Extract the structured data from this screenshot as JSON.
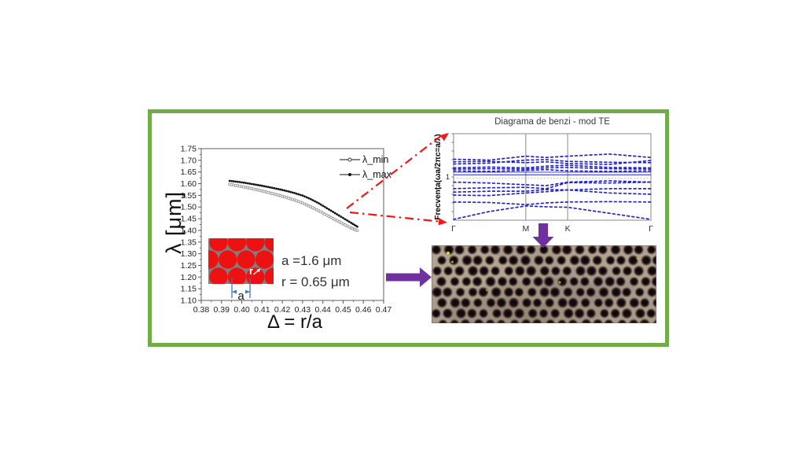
{
  "figure": {
    "border_color": "#70AD47",
    "background": "#ffffff"
  },
  "annotations": {
    "params_line1": "a =1.6 μm",
    "params_line2": "r = 0.65 μm"
  },
  "inset": {
    "a_label": "a",
    "r_label": "r",
    "circle_color": "#ee1111",
    "bg_color": "#7f7f7f",
    "dim_color": "#4472c4"
  },
  "micro": {
    "bg_color": "#a99b8a",
    "hole_color": "#140e10",
    "speck_color": "#cddf4b"
  },
  "arrows": {
    "purple": "#7030A0",
    "red": "#f21818"
  },
  "chart_data": [
    {
      "type": "line",
      "title": "",
      "xlabel": "Δ = r/a",
      "ylabel": "λ [μm]",
      "xlim": [
        0.38,
        0.47
      ],
      "ylim": [
        1.1,
        1.75
      ],
      "x_ticks": [
        0.38,
        0.39,
        0.4,
        0.41,
        0.42,
        0.43,
        0.44,
        0.45,
        0.46,
        0.47
      ],
      "y_ticks": [
        1.1,
        1.15,
        1.2,
        1.25,
        1.3,
        1.35,
        1.4,
        1.45,
        1.5,
        1.55,
        1.6,
        1.65,
        1.7,
        1.75
      ],
      "grid": false,
      "legend_position": "inside-top-right",
      "series": [
        {
          "name": "λ_min",
          "marker": "open",
          "color": "#8f8f8f",
          "x": [
            0.394,
            0.398,
            0.402,
            0.406,
            0.41,
            0.414,
            0.418,
            0.422,
            0.426,
            0.43,
            0.434,
            0.438,
            0.442,
            0.446,
            0.45,
            0.454,
            0.457
          ],
          "y": [
            1.597,
            1.591,
            1.584,
            1.577,
            1.569,
            1.56,
            1.551,
            1.541,
            1.53,
            1.517,
            1.501,
            1.484,
            1.465,
            1.446,
            1.428,
            1.41,
            1.399
          ]
        },
        {
          "name": "λ_max",
          "marker": "filled",
          "color": "#1a1a1a",
          "x": [
            0.394,
            0.398,
            0.402,
            0.406,
            0.41,
            0.414,
            0.418,
            0.422,
            0.426,
            0.43,
            0.434,
            0.438,
            0.442,
            0.446,
            0.45,
            0.454,
            0.457
          ],
          "y": [
            1.612,
            1.608,
            1.603,
            1.597,
            1.591,
            1.584,
            1.577,
            1.569,
            1.56,
            1.549,
            1.534,
            1.516,
            1.495,
            1.474,
            1.453,
            1.432,
            1.416
          ]
        }
      ]
    },
    {
      "type": "scatter",
      "title": "Diagrama de benzi - mod TE",
      "ylabel": "Frecvența(ωa/2πc=a/λ)",
      "xlabel": "",
      "k_labels": [
        "Γ",
        "M",
        "K",
        "Γ"
      ],
      "k_positions": [
        0,
        0.366,
        0.578,
        1
      ],
      "ylim": [
        0,
        2
      ],
      "y_tick_labels": [
        "1"
      ],
      "band_color": "#2323cc",
      "x_samples": [
        0,
        0.18,
        0.366,
        0.47,
        0.578,
        0.79,
        1
      ],
      "bands": [
        [
          0.02,
          0.2,
          0.33,
          0.31,
          0.3,
          0.16,
          0.02
        ],
        [
          0.42,
          0.41,
          0.36,
          0.4,
          0.42,
          0.43,
          0.42
        ],
        [
          0.58,
          0.57,
          0.63,
          0.66,
          0.7,
          0.63,
          0.6
        ],
        [
          0.65,
          0.67,
          0.67,
          0.71,
          0.7,
          0.73,
          0.73
        ],
        [
          0.73,
          0.75,
          0.76,
          0.73,
          0.87,
          0.86,
          0.88
        ],
        [
          0.88,
          0.86,
          0.82,
          0.8,
          0.88,
          0.91,
          0.88
        ],
        [
          1.14,
          1.13,
          1.15,
          1.17,
          1.14,
          1.13,
          1.14
        ],
        [
          1.18,
          1.19,
          1.18,
          1.21,
          1.22,
          1.19,
          1.18
        ],
        [
          1.21,
          1.23,
          1.21,
          1.25,
          1.27,
          1.22,
          1.21
        ],
        [
          1.3,
          1.32,
          1.39,
          1.4,
          1.36,
          1.34,
          1.33
        ],
        [
          1.35,
          1.36,
          1.33,
          1.35,
          1.31,
          1.29,
          1.38
        ],
        [
          1.41,
          1.39,
          1.48,
          1.45,
          1.48,
          1.53,
          1.45
        ]
      ],
      "flat_gray_freq": 0.97,
      "solid_line_freqs": [
        1.05,
        1.11
      ]
    }
  ]
}
